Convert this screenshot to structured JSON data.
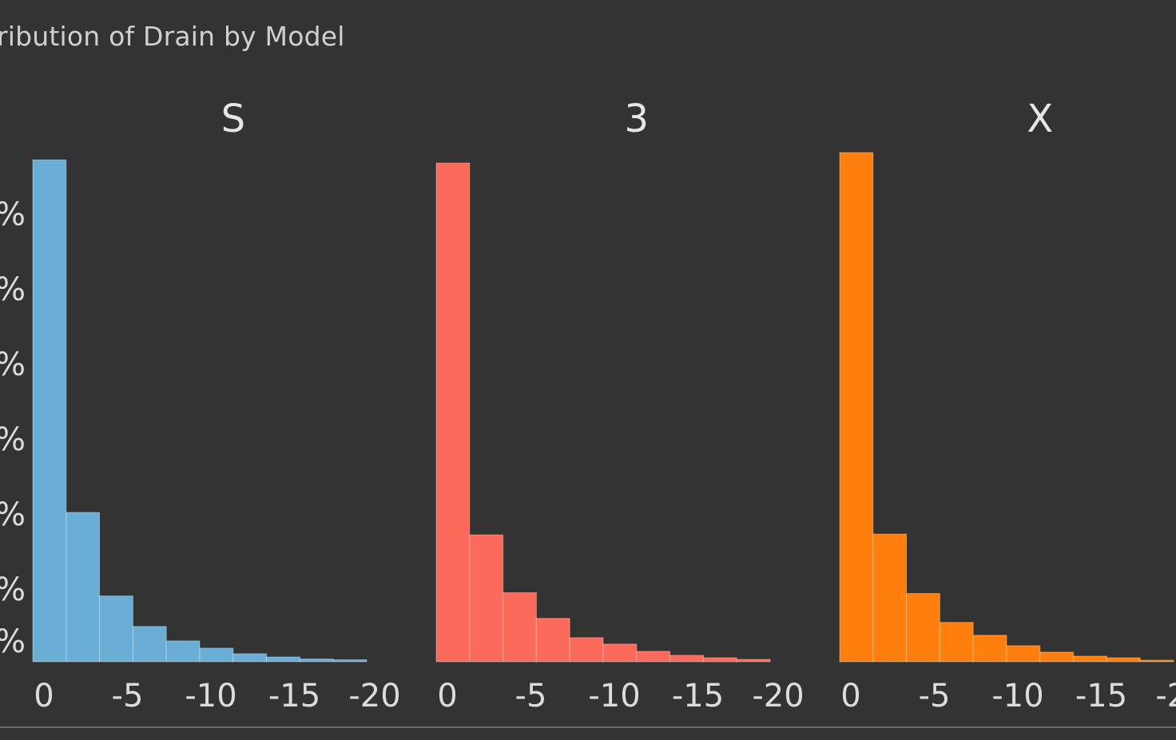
{
  "title": "ribution of Drain by Model",
  "y_tick_labels": [
    "%",
    "%",
    "%",
    "%",
    "%",
    "%",
    "%"
  ],
  "colors": {
    "background": "#333333",
    "S": "#6aaed6",
    "3": "#fb6a5a",
    "X": "#ff7f0e"
  },
  "chart_data": {
    "type": "bar",
    "title": "ribution of Drain by Model",
    "xlabel": "",
    "ylabel": "",
    "x_ticks": [
      "0",
      "-5",
      "-10",
      "-15",
      "-20"
    ],
    "bin_edges": [
      0,
      -2,
      -4,
      -6,
      -8,
      -10,
      -12,
      -14,
      -16,
      -18,
      -20
    ],
    "series": [
      {
        "name": "S",
        "values": [
          62.5,
          18.6,
          8.2,
          4.4,
          2.6,
          1.7,
          1.0,
          0.6,
          0.35,
          0.25
        ]
      },
      {
        "name": "3",
        "values": [
          62.1,
          15.8,
          8.6,
          5.4,
          3.0,
          2.2,
          1.3,
          0.8,
          0.5,
          0.3
        ]
      },
      {
        "name": "X",
        "values": [
          63.4,
          15.9,
          8.5,
          4.9,
          3.3,
          2.0,
          1.2,
          0.7,
          0.5,
          0.2
        ]
      }
    ],
    "ylim": [
      0,
      70
    ]
  }
}
